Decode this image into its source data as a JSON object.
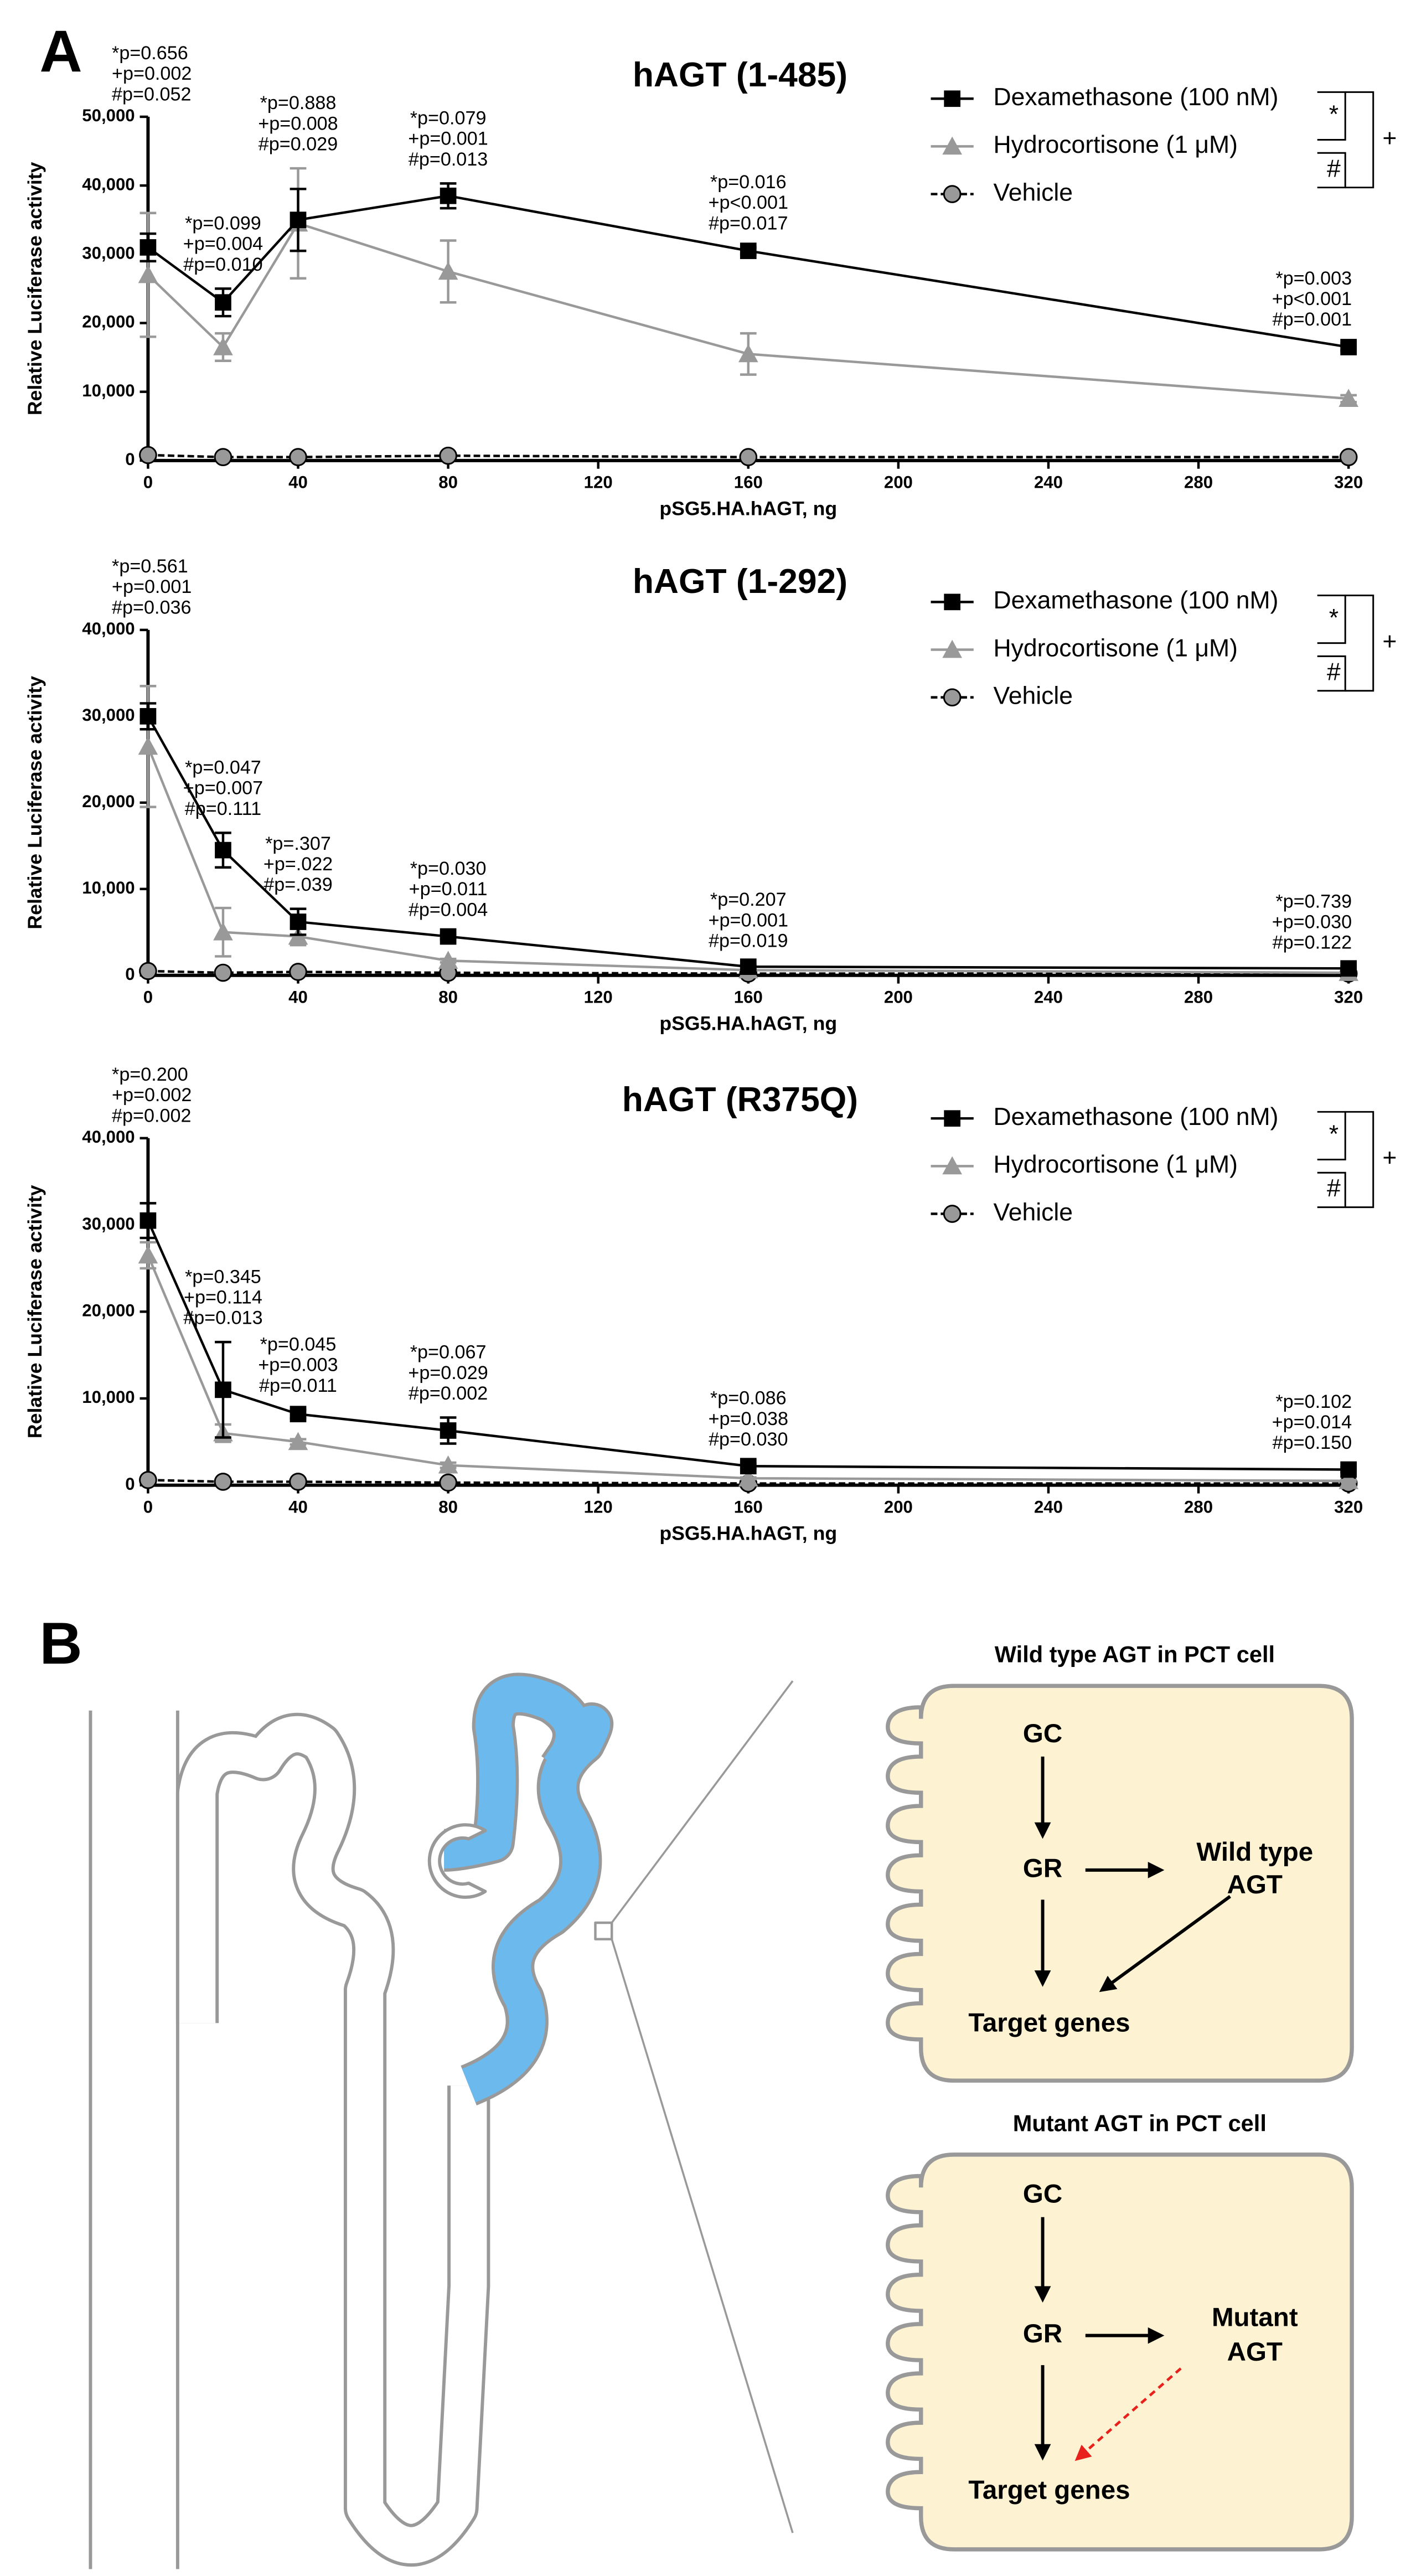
{
  "panel_labels": [
    "A",
    "B"
  ],
  "chart_data": [
    {
      "type": "line",
      "title": "hAGT (1-485)",
      "x_label": "pSG5.HA.hAGT, ng",
      "y_label": "Relative Luciferase activity",
      "x": [
        0,
        20,
        40,
        80,
        160,
        320
      ],
      "xlim": [
        0,
        320
      ],
      "xticks": [
        0,
        40,
        80,
        120,
        160,
        200,
        240,
        280,
        320
      ],
      "ylim": [
        0,
        50000
      ],
      "yticks": [
        0,
        {
          "value": 10000,
          "label": "10,000"
        },
        {
          "value": 20000,
          "label": "20,000"
        },
        {
          "value": 30000,
          "label": "30,000"
        },
        {
          "value": 40000,
          "label": "40,000"
        },
        {
          "value": 50000,
          "label": "50,000"
        }
      ],
      "series": [
        {
          "name": "Dexamethasone (100 nM)",
          "color": "#000000",
          "marker": "square",
          "line_style": "solid",
          "values": [
            31000,
            23000,
            35000,
            38500,
            30500,
            16500
          ],
          "errors": [
            2000,
            2000,
            4500,
            1800,
            500,
            500
          ]
        },
        {
          "name": "Hydrocortisone (1 μM)",
          "color": "#999999",
          "marker": "triangle",
          "line_style": "solid",
          "values": [
            27000,
            16500,
            34500,
            27500,
            15500,
            9000
          ],
          "errors": [
            9000,
            2000,
            8000,
            4500,
            3000,
            500
          ]
        },
        {
          "name": "Vehicle",
          "color": "#999999",
          "marker": "circle",
          "line_style": "dashed",
          "values": [
            800,
            500,
            500,
            700,
            500,
            500
          ],
          "errors": [
            0,
            0,
            0,
            0,
            0,
            0
          ]
        }
      ],
      "legend_brackets": [
        "*",
        "#",
        "+"
      ],
      "annotations": [
        [
          "*p=0.656",
          "+p=0.002",
          "#p=0.052"
        ],
        [
          "*p=0.099",
          "+p=0.004",
          "#p=0.010"
        ],
        [
          "*p=0.888",
          "+p=0.008",
          "#p=0.029"
        ],
        [
          "*p=0.079",
          "+p=0.001",
          "#p=0.013"
        ],
        [
          "*p=0.016",
          "+p<0.001",
          "#p=0.017"
        ],
        [
          "*p=0.003",
          "+p<0.001",
          "#p=0.001"
        ]
      ]
    },
    {
      "type": "line",
      "title": "hAGT (1-292)",
      "x_label": "pSG5.HA.hAGT, ng",
      "y_label": "Relative Luciferase activity",
      "x": [
        0,
        20,
        40,
        80,
        160,
        320
      ],
      "xlim": [
        0,
        320
      ],
      "xticks": [
        0,
        40,
        80,
        120,
        160,
        200,
        240,
        280,
        320
      ],
      "ylim": [
        0,
        40000
      ],
      "yticks": [
        0,
        {
          "value": 10000,
          "label": "10,000"
        },
        {
          "value": 20000,
          "label": "20,000"
        },
        {
          "value": 30000,
          "label": "30,000"
        },
        {
          "value": 40000,
          "label": "40,000"
        }
      ],
      "series": [
        {
          "name": "Dexamethasone (100 nM)",
          "color": "#000000",
          "marker": "square",
          "line_style": "solid",
          "values": [
            30000,
            14500,
            6200,
            4500,
            1000,
            800
          ],
          "errors": [
            1500,
            2000,
            1500,
            300,
            200,
            200
          ]
        },
        {
          "name": "Hydrocortisone (1 μM)",
          "color": "#999999",
          "marker": "triangle",
          "line_style": "solid",
          "values": [
            26500,
            5000,
            4500,
            1700,
            600,
            300
          ],
          "errors": [
            7000,
            2800,
            1000,
            200,
            100,
            100
          ]
        },
        {
          "name": "Vehicle",
          "color": "#999999",
          "marker": "circle",
          "line_style": "dashed",
          "values": [
            500,
            300,
            400,
            300,
            200,
            200
          ],
          "errors": [
            0,
            0,
            0,
            0,
            0,
            0
          ]
        }
      ],
      "legend_brackets": [
        "*",
        "#",
        "+"
      ],
      "annotations": [
        [
          "*p=0.561",
          "+p=0.001",
          "#p=0.036"
        ],
        [
          "*p=0.047",
          "+p=0.007",
          "#p=0.111"
        ],
        [
          "*p=.307",
          "+p=.022",
          "#p=.039"
        ],
        [
          "*p=0.030",
          "+p=0.011",
          "#p=0.004"
        ],
        [
          "*p=0.207",
          "+p=0.001",
          "#p=0.019"
        ],
        [
          "*p=0.739",
          "+p=0.030",
          "#p=0.122"
        ]
      ]
    },
    {
      "type": "line",
      "title": "hAGT (R375Q)",
      "x_label": "pSG5.HA.hAGT, ng",
      "y_label": "Relative Luciferase activity",
      "x": [
        0,
        20,
        40,
        80,
        160,
        320
      ],
      "xlim": [
        0,
        320
      ],
      "xticks": [
        0,
        40,
        80,
        120,
        160,
        200,
        240,
        280,
        320
      ],
      "ylim": [
        0,
        40000
      ],
      "yticks": [
        0,
        {
          "value": 10000,
          "label": "10,000"
        },
        {
          "value": 20000,
          "label": "20,000"
        },
        {
          "value": 30000,
          "label": "30,000"
        },
        {
          "value": 40000,
          "label": "40,000"
        }
      ],
      "series": [
        {
          "name": "Dexamethasone (100 nM)",
          "color": "#000000",
          "marker": "square",
          "line_style": "solid",
          "values": [
            30500,
            11000,
            8200,
            6300,
            2200,
            1800
          ],
          "errors": [
            2000,
            5500,
            500,
            1500,
            300,
            300
          ]
        },
        {
          "name": "Hydrocortisone (1 μM)",
          "color": "#999999",
          "marker": "triangle",
          "line_style": "solid",
          "values": [
            26500,
            6000,
            5000,
            2300,
            800,
            500
          ],
          "errors": [
            1500,
            1000,
            300,
            300,
            100,
            100
          ]
        },
        {
          "name": "Vehicle",
          "color": "#999999",
          "marker": "circle",
          "line_style": "dashed",
          "values": [
            600,
            400,
            400,
            300,
            200,
            200
          ],
          "errors": [
            0,
            0,
            0,
            0,
            0,
            0
          ]
        }
      ],
      "legend_brackets": [
        "*",
        "#",
        "+"
      ],
      "annotations": [
        [
          "*p=0.200",
          "+p=0.002",
          "#p=0.002"
        ],
        [
          "*p=0.345",
          "+p=0.114",
          "#p=0.013"
        ],
        [
          "*p=0.045",
          "+p=0.003",
          "#p=0.011"
        ],
        [
          "*p=0.067",
          "+p=0.029",
          "#p=0.002"
        ],
        [
          "*p=0.086",
          "+p=0.038",
          "#p=0.030"
        ],
        [
          "*p=0.102",
          "+p=0.014",
          "#p=0.150"
        ]
      ]
    }
  ],
  "diagram": {
    "wild_type": {
      "title": "Wild type AGT in PCT cell",
      "gc": "GC",
      "gr": "GR",
      "agt": [
        "Wild type",
        "AGT"
      ],
      "target": "Target genes"
    },
    "mutant": {
      "title": "Mutant AGT in PCT cell",
      "gc": "GC",
      "gr": "GR",
      "agt": [
        "Mutant",
        "AGT"
      ],
      "target": "Target genes"
    }
  }
}
